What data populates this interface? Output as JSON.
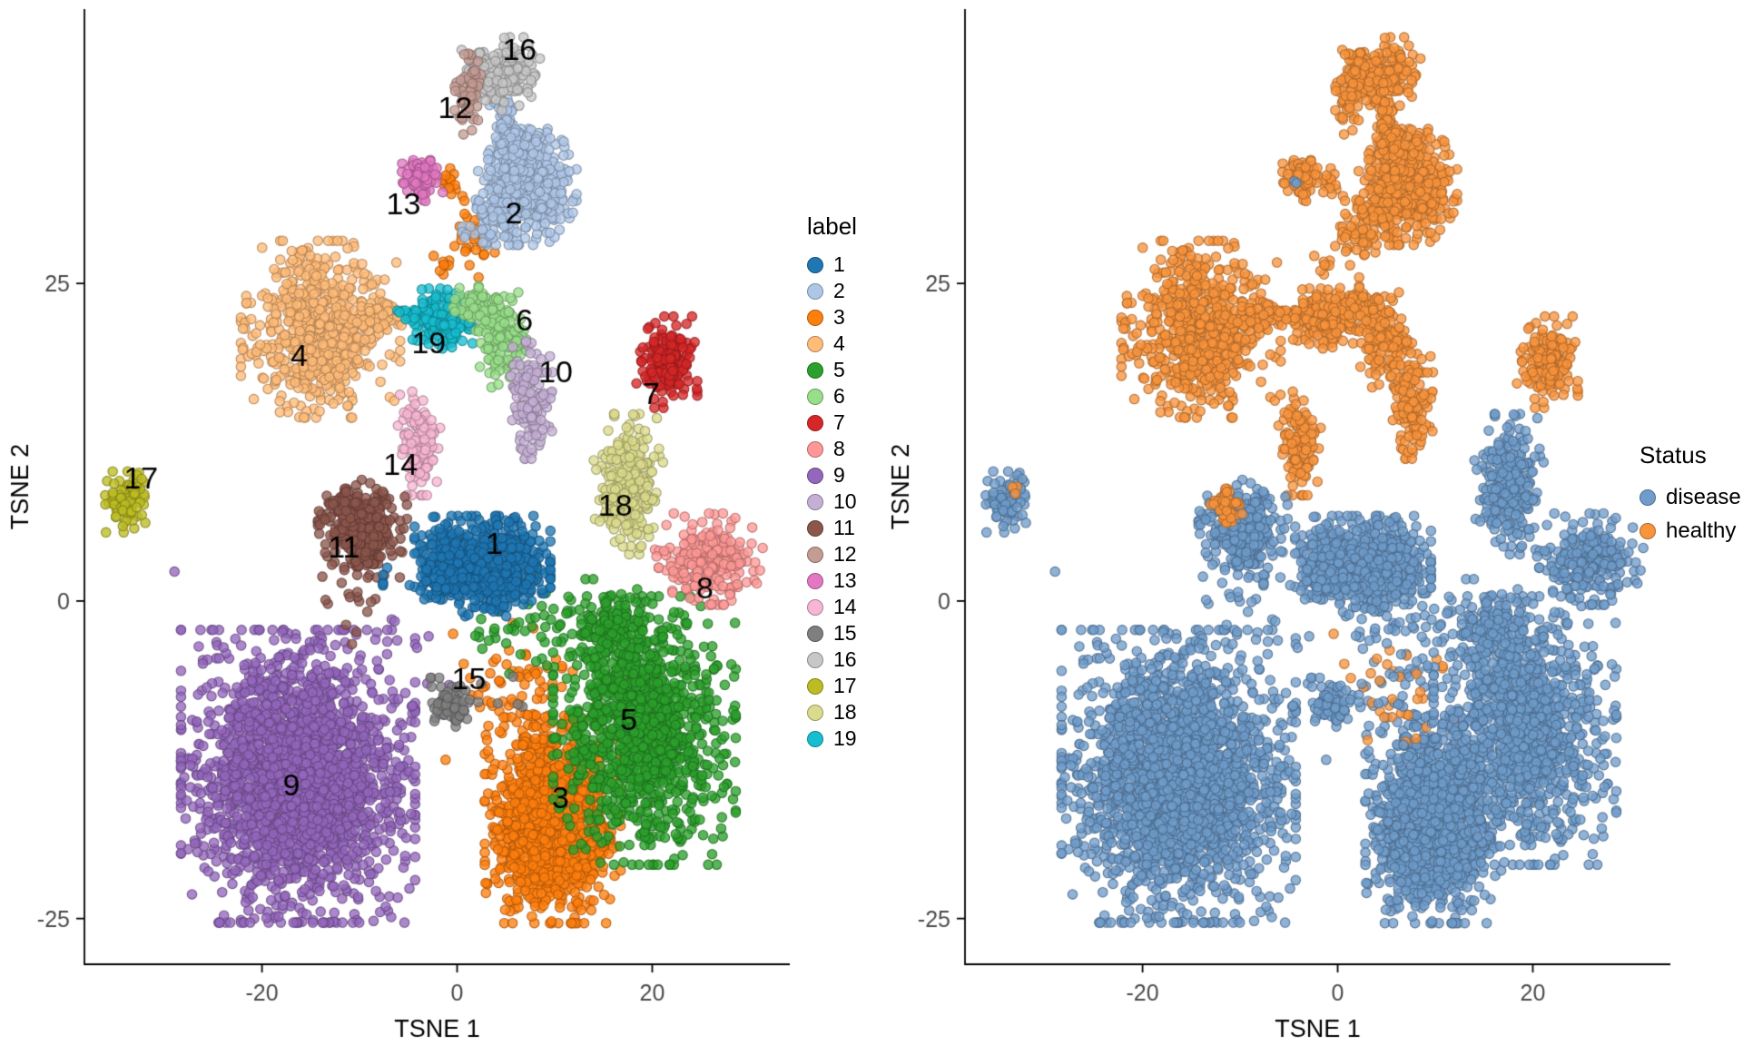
{
  "chart_data": {
    "type": "scatter",
    "title": "",
    "description": "Two side-by-side t-SNE embeddings of the same cells; left panel colored by cluster label 1-19, right panel colored by disease status.",
    "panels": [
      {
        "id": "left",
        "xlabel": "TSNE 1",
        "ylabel": "TSNE 2",
        "xlim": [
          -38.2,
          34.1
        ],
        "ylim": [
          -28.6,
          46.6
        ],
        "xticks": [
          -20,
          0,
          20
        ],
        "yticks": [
          -25,
          0,
          25
        ],
        "color_by": "cluster",
        "grid": false
      },
      {
        "id": "right",
        "xlabel": "TSNE 1",
        "ylabel": "TSNE 2",
        "xlim": [
          -38.2,
          34.1
        ],
        "ylim": [
          -28.6,
          46.6
        ],
        "xticks": [
          -20,
          0,
          20
        ],
        "yticks": [
          -25,
          0,
          25
        ],
        "color_by": "status",
        "grid": false
      }
    ],
    "legend": {
      "title": "label",
      "position": "between-panels"
    },
    "status_legend": {
      "title": "Status",
      "items": [
        {
          "label": "disease",
          "color": "#6F9CCB"
        },
        {
          "label": "healthy",
          "color": "#F8943C"
        }
      ]
    },
    "status_colors": {
      "disease": "#6F9CCB",
      "healthy": "#F8943C"
    },
    "point_style": {
      "radius": 5.2,
      "fill_alpha": 0.78,
      "stroke_alpha": 0.9,
      "stroke_width": 1.1,
      "stroke_darken": 0.7
    },
    "seed": 7,
    "draw_order": [
      "9",
      "3",
      "5",
      "4",
      "2",
      "16",
      "12",
      "13",
      "19",
      "6",
      "10",
      "7",
      "14",
      "17",
      "18",
      "11",
      "8",
      "15",
      "1"
    ],
    "clusters": [
      {
        "label": "1",
        "color": "#1f77b4",
        "status": "disease",
        "label_pos": [
          3.8,
          4.4
        ],
        "blobs": [
          {
            "c": [
              2.6,
              3.1
            ],
            "s": [
              2.9,
              1.5
            ],
            "n": 780
          },
          {
            "c": [
              2.0,
              1.2
            ],
            "s": [
              4.0,
              1.0
            ],
            "n": 110
          }
        ]
      },
      {
        "label": "2",
        "color": "#aec7e8",
        "status": "healthy",
        "label_pos": [
          5.8,
          30.4
        ],
        "blobs": [
          {
            "c": [
              7.2,
              32.6
            ],
            "s": [
              2.1,
              1.9
            ],
            "n": 420
          },
          {
            "c": [
              5.0,
              37.6
            ],
            "s": [
              0.6,
              1.9
            ],
            "n": 110,
            "rot": 0.25
          },
          {
            "c": [
              3.4,
              30.3
            ],
            "s": [
              1.2,
              0.9
            ],
            "n": 70
          },
          {
            "c": [
              6.3,
              35.4
            ],
            "s": [
              1.3,
              0.8
            ],
            "n": 55
          }
        ]
      },
      {
        "label": "3",
        "color": "#ff7f0e",
        "status": "disease",
        "label_pos": [
          10.6,
          -15.6
        ],
        "blobs": [
          {
            "c": [
              9.8,
              -17.2
            ],
            "s": [
              2.9,
              3.4
            ],
            "n": 1350,
            "status": "disease"
          },
          {
            "c": [
              6.5,
              -7.5
            ],
            "s": [
              3.2,
              2.4
            ],
            "n": 80,
            "status": "mixed",
            "hf": 0.4
          },
          {
            "c": [
              -0.9,
              32.9
            ],
            "s": [
              0.6,
              0.6
            ],
            "n": 18,
            "status": "healthy"
          },
          {
            "c": [
              1.7,
              28.6
            ],
            "s": [
              0.9,
              1.3
            ],
            "n": 32,
            "status": "healthy"
          },
          {
            "c": [
              -1.2,
              26.4
            ],
            "s": [
              0.5,
              0.5
            ],
            "n": 8,
            "status": "healthy"
          }
        ]
      },
      {
        "label": "4",
        "color": "#ffbb78",
        "status": "healthy",
        "label_pos": [
          -16.2,
          19.2
        ],
        "blobs": [
          {
            "c": [
              -14.0,
              21.4
            ],
            "s": [
              3.4,
              2.9
            ],
            "n": 640
          },
          {
            "c": [
              -7.7,
              22.3
            ],
            "s": [
              1.2,
              0.7
            ],
            "n": 45
          }
        ]
      },
      {
        "label": "5",
        "color": "#2ca02c",
        "status": "disease",
        "label_pos": [
          17.6,
          -9.5
        ],
        "blobs": [
          {
            "c": [
              19.2,
              -10.2
            ],
            "s": [
              3.9,
              4.4
            ],
            "n": 1150
          },
          {
            "c": [
              15.8,
              -2.6
            ],
            "s": [
              2.2,
              1.8
            ],
            "n": 150
          },
          {
            "c": [
              8.5,
              -1.8
            ],
            "s": [
              4.2,
              2.2
            ],
            "n": 55
          }
        ]
      },
      {
        "label": "6",
        "color": "#98df8a",
        "status": "healthy",
        "label_pos": [
          6.9,
          22.0
        ],
        "blobs": [
          {
            "c": [
              2.2,
              23.2
            ],
            "s": [
              1.1,
              0.8
            ],
            "n": 70
          },
          {
            "c": [
              4.8,
              20.6
            ],
            "s": [
              1.1,
              1.6
            ],
            "n": 130
          }
        ]
      },
      {
        "label": "7",
        "color": "#d62728",
        "status": "healthy",
        "label_pos": [
          19.9,
          16.2
        ],
        "blobs": [
          {
            "c": [
              21.5,
              18.8
            ],
            "s": [
              1.3,
              1.5
            ],
            "n": 170
          }
        ]
      },
      {
        "label": "8",
        "color": "#ff9896",
        "status": "disease",
        "label_pos": [
          25.4,
          0.9
        ],
        "blobs": [
          {
            "c": [
              25.8,
              3.3
            ],
            "s": [
              2.3,
              1.5
            ],
            "n": 260
          }
        ]
      },
      {
        "label": "9",
        "color": "#9467bd",
        "status": "disease",
        "label_pos": [
          -17.0,
          -14.6
        ],
        "blobs": [
          {
            "c": [
              -16.3,
              -13.8
            ],
            "s": [
              5.0,
              4.8
            ],
            "n": 2400
          },
          {
            "c": [
              -28.9,
              2.3
            ],
            "s": [
              0.05,
              0.05
            ],
            "n": 1
          },
          {
            "c": [
              -5.0,
              -4.5
            ],
            "s": [
              3.0,
              2.2
            ],
            "n": 12
          }
        ]
      },
      {
        "label": "10",
        "color": "#c5b0d5",
        "status": "healthy",
        "label_pos": [
          10.1,
          17.9
        ],
        "blobs": [
          {
            "c": [
              7.6,
              16.0
            ],
            "s": [
              0.9,
              2.0
            ],
            "n": 150
          }
        ]
      },
      {
        "label": "11",
        "color": "#8c564b",
        "status": "disease",
        "label_pos": [
          -11.6,
          4.1
        ],
        "blobs": [
          {
            "c": [
              -9.7,
              5.7
            ],
            "s": [
              1.9,
              1.6
            ],
            "n": 320,
            "status": "disease"
          },
          {
            "c": [
              -11.4,
              7.4
            ],
            "s": [
              0.8,
              0.6
            ],
            "n": 45,
            "status": "healthy"
          },
          {
            "c": [
              -10.6,
              0.0
            ],
            "s": [
              1.2,
              1.6
            ],
            "n": 16,
            "status": "disease"
          }
        ]
      },
      {
        "label": "12",
        "color": "#c49c94",
        "status": "healthy",
        "label_pos": [
          -0.2,
          38.7
        ],
        "blobs": [
          {
            "c": [
              1.2,
              40.1
            ],
            "s": [
              0.6,
              1.4
            ],
            "n": 65
          }
        ]
      },
      {
        "label": "13",
        "color": "#e377c2",
        "status": "healthy",
        "label_pos": [
          -5.5,
          31.1
        ],
        "blobs": [
          {
            "c": [
              -3.5,
              33.4
            ],
            "s": [
              0.9,
              0.8
            ],
            "n": 85
          },
          {
            "c": [
              -4.4,
              33.1
            ],
            "s": [
              0.2,
              0.2
            ],
            "n": 2,
            "status": "disease"
          }
        ]
      },
      {
        "label": "14",
        "color": "#f7b6d2",
        "status": "healthy",
        "label_pos": [
          -5.8,
          10.6
        ],
        "blobs": [
          {
            "c": [
              -3.9,
              12.4
            ],
            "s": [
              0.9,
              1.7
            ],
            "n": 125
          }
        ]
      },
      {
        "label": "15",
        "color": "#7f7f7f",
        "status": "disease",
        "label_pos": [
          1.2,
          -6.3
        ],
        "blobs": [
          {
            "c": [
              -1.0,
              -8.2
            ],
            "s": [
              0.9,
              0.9
            ],
            "n": 60
          },
          {
            "c": [
              2.8,
              -7.6
            ],
            "s": [
              2.4,
              1.1
            ],
            "n": 10
          }
        ]
      },
      {
        "label": "16",
        "color": "#c7c7c7",
        "status": "healthy",
        "label_pos": [
          6.4,
          43.3
        ],
        "blobs": [
          {
            "c": [
              4.4,
              41.5
            ],
            "s": [
              1.7,
              1.2
            ],
            "n": 210
          }
        ]
      },
      {
        "label": "17",
        "color": "#bcbd22",
        "status": "disease",
        "label_pos": [
          -32.4,
          9.5
        ],
        "blobs": [
          {
            "c": [
              -33.9,
              7.8
            ],
            "s": [
              1.0,
              1.0
            ],
            "n": 85,
            "status": "disease"
          },
          {
            "c": [
              -33.1,
              8.7
            ],
            "s": [
              0.25,
              0.25
            ],
            "n": 3,
            "status": "healthy"
          }
        ]
      },
      {
        "label": "18",
        "color": "#dbdb8d",
        "status": "disease",
        "label_pos": [
          16.2,
          7.4
        ],
        "blobs": [
          {
            "c": [
              17.5,
              9.2
            ],
            "s": [
              1.5,
              2.3
            ],
            "n": 260
          }
        ]
      },
      {
        "label": "19",
        "color": "#17becf",
        "status": "healthy",
        "label_pos": [
          -2.9,
          20.2
        ],
        "blobs": [
          {
            "c": [
              -1.4,
              22.2
            ],
            "s": [
              1.5,
              1.0
            ],
            "n": 190
          },
          {
            "c": [
              -5.3,
              22.6
            ],
            "s": [
              0.6,
              0.4
            ],
            "n": 14
          }
        ]
      }
    ]
  }
}
